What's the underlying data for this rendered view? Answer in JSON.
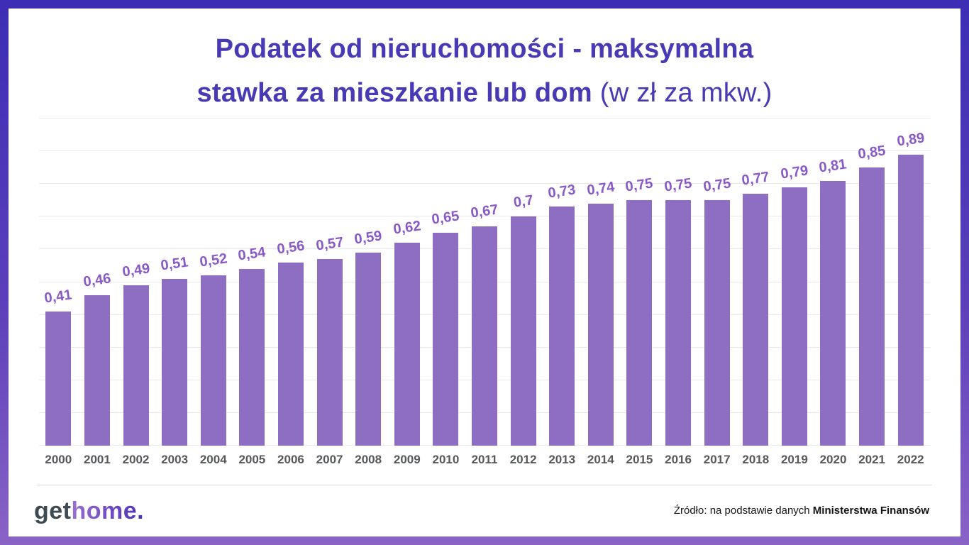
{
  "frame": {
    "border_top_color": "#3c2eb5",
    "border_bottom_color": "#8a63c6",
    "background": "#ffffff"
  },
  "title": {
    "line1": "Podatek od nieruchomości - maksymalna",
    "line2_bold": "stawka za mieszkanie lub dom",
    "line2_light": " (w zł za mkw.)",
    "color": "#4839b4"
  },
  "chart_data": {
    "type": "bar",
    "title": "Podatek od nieruchomości - maksymalna stawka za mieszkanie lub dom (w zł za mkw.)",
    "categories": [
      "2000",
      "2001",
      "2002",
      "2003",
      "2004",
      "2005",
      "2006",
      "2007",
      "2008",
      "2009",
      "2010",
      "2011",
      "2012",
      "2013",
      "2014",
      "2015",
      "2016",
      "2017",
      "2018",
      "2019",
      "2020",
      "2021",
      "2022"
    ],
    "values": [
      0.41,
      0.46,
      0.49,
      0.51,
      0.52,
      0.54,
      0.56,
      0.57,
      0.59,
      0.62,
      0.65,
      0.67,
      0.7,
      0.73,
      0.74,
      0.75,
      0.75,
      0.75,
      0.77,
      0.79,
      0.81,
      0.85,
      0.89
    ],
    "value_labels": [
      "0,41",
      "0,46",
      "0,49",
      "0,51",
      "0,52",
      "0,54",
      "0,56",
      "0,57",
      "0,59",
      "0,62",
      "0,65",
      "0,67",
      "0,7",
      "0,73",
      "0,74",
      "0,75",
      "0,75",
      "0,75",
      "0,77",
      "0,79",
      "0,81",
      "0,85",
      "0,89"
    ],
    "xlabel": "",
    "ylabel": "",
    "ylim": [
      0,
      1.0
    ],
    "grid_step": 0.1,
    "grid": "horizontal",
    "legend_position": "none",
    "bar_color": "#8d6ec3",
    "value_label_color": "#8959c7",
    "axis_label_color": "#57585a",
    "gridline_color": "#eaeaea"
  },
  "footer": {
    "logo_get": "get",
    "logo_home": "home.",
    "source_prefix": "Źródło: na podstawie danych ",
    "source_bold": "Ministerstwa Finansów"
  }
}
